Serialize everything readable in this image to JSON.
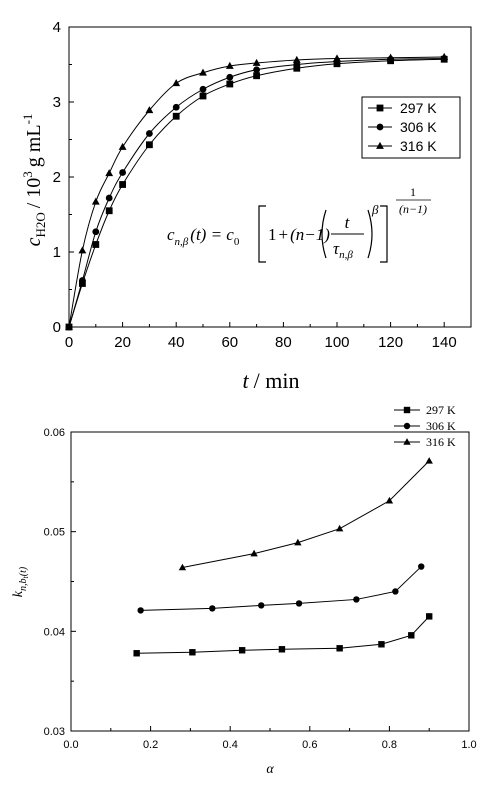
{
  "chart_data": [
    {
      "type": "line",
      "title": "",
      "xlabel_var": "t",
      "xlabel_unit": "/ min",
      "ylabel_var": "c",
      "ylabel_sub": "H2O",
      "ylabel_unit_pre": "/ 10",
      "ylabel_unit_exp": "3",
      "ylabel_unit_post": "g mL",
      "ylabel_unit_exp2": "-1",
      "xlim": [
        0,
        150
      ],
      "ylim": [
        0,
        4
      ],
      "x_ticks": [
        0,
        20,
        40,
        60,
        80,
        100,
        120,
        140
      ],
      "y_ticks": [
        0,
        1,
        2,
        3,
        4
      ],
      "legend_position": "top-right",
      "series": [
        {
          "name": "297 K",
          "marker": "square",
          "x": [
            0,
            5,
            10,
            15,
            20,
            30,
            40,
            50,
            60,
            70,
            85,
            100,
            120,
            140
          ],
          "y": [
            0,
            0.58,
            1.1,
            1.55,
            1.9,
            2.43,
            2.81,
            3.08,
            3.24,
            3.35,
            3.45,
            3.51,
            3.55,
            3.57
          ]
        },
        {
          "name": "306 K",
          "marker": "circle",
          "x": [
            0,
            5,
            10,
            15,
            20,
            30,
            40,
            50,
            60,
            70,
            85,
            100,
            120,
            140
          ],
          "y": [
            0,
            0.62,
            1.27,
            1.72,
            2.06,
            2.58,
            2.93,
            3.17,
            3.33,
            3.43,
            3.5,
            3.54,
            3.57,
            3.58
          ]
        },
        {
          "name": "316 K",
          "marker": "triangle",
          "x": [
            0,
            5,
            10,
            15,
            20,
            30,
            40,
            50,
            60,
            70,
            85,
            100,
            120,
            140
          ],
          "y": [
            0,
            1.02,
            1.67,
            2.05,
            2.4,
            2.89,
            3.25,
            3.39,
            3.48,
            3.52,
            3.56,
            3.58,
            3.59,
            3.6
          ]
        }
      ],
      "annotation": {
        "lhs_c": "c",
        "lhs_sub": "n,β",
        "lhs_arg": "(t) = c",
        "c0_sub": "0",
        "one": "1",
        "plus": "+",
        "n_minus_1": "(n−1)",
        "frac_num": "t",
        "tau": "τ",
        "tau_sub": "n,β",
        "beta": "β",
        "exp_num": "1",
        "exp_den": "(n−1)"
      }
    },
    {
      "type": "line",
      "title": "",
      "xlabel": "α",
      "ylabel_var": "k",
      "ylabel_sub": "n,b",
      "ylabel_subsub": "t",
      "ylabel_arg": "(t)",
      "xlim": [
        0.0,
        1.0
      ],
      "ylim": [
        0.03,
        0.06
      ],
      "x_ticks": [
        "0.0",
        "0.2",
        "0.4",
        "0.6",
        "0.8",
        "1.0"
      ],
      "y_ticks": [
        "0.03",
        "0.04",
        "0.05",
        "0.06"
      ],
      "legend_position": "top-right",
      "series": [
        {
          "name": "297 K",
          "marker": "square",
          "x": [
            0.165,
            0.305,
            0.43,
            0.53,
            0.675,
            0.78,
            0.855,
            0.9
          ],
          "y": [
            0.0378,
            0.0379,
            0.0381,
            0.0382,
            0.0383,
            0.0387,
            0.0396,
            0.0415
          ]
        },
        {
          "name": "306 K",
          "marker": "circle",
          "x": [
            0.175,
            0.355,
            0.478,
            0.573,
            0.717,
            0.815,
            0.88
          ],
          "y": [
            0.0421,
            0.0423,
            0.0426,
            0.0428,
            0.0432,
            0.044,
            0.0465
          ]
        },
        {
          "name": "316 K",
          "marker": "triangle",
          "x": [
            0.28,
            0.46,
            0.57,
            0.675,
            0.8,
            0.9
          ],
          "y": [
            0.0464,
            0.0478,
            0.0489,
            0.0503,
            0.0531,
            0.0571
          ]
        }
      ]
    }
  ]
}
